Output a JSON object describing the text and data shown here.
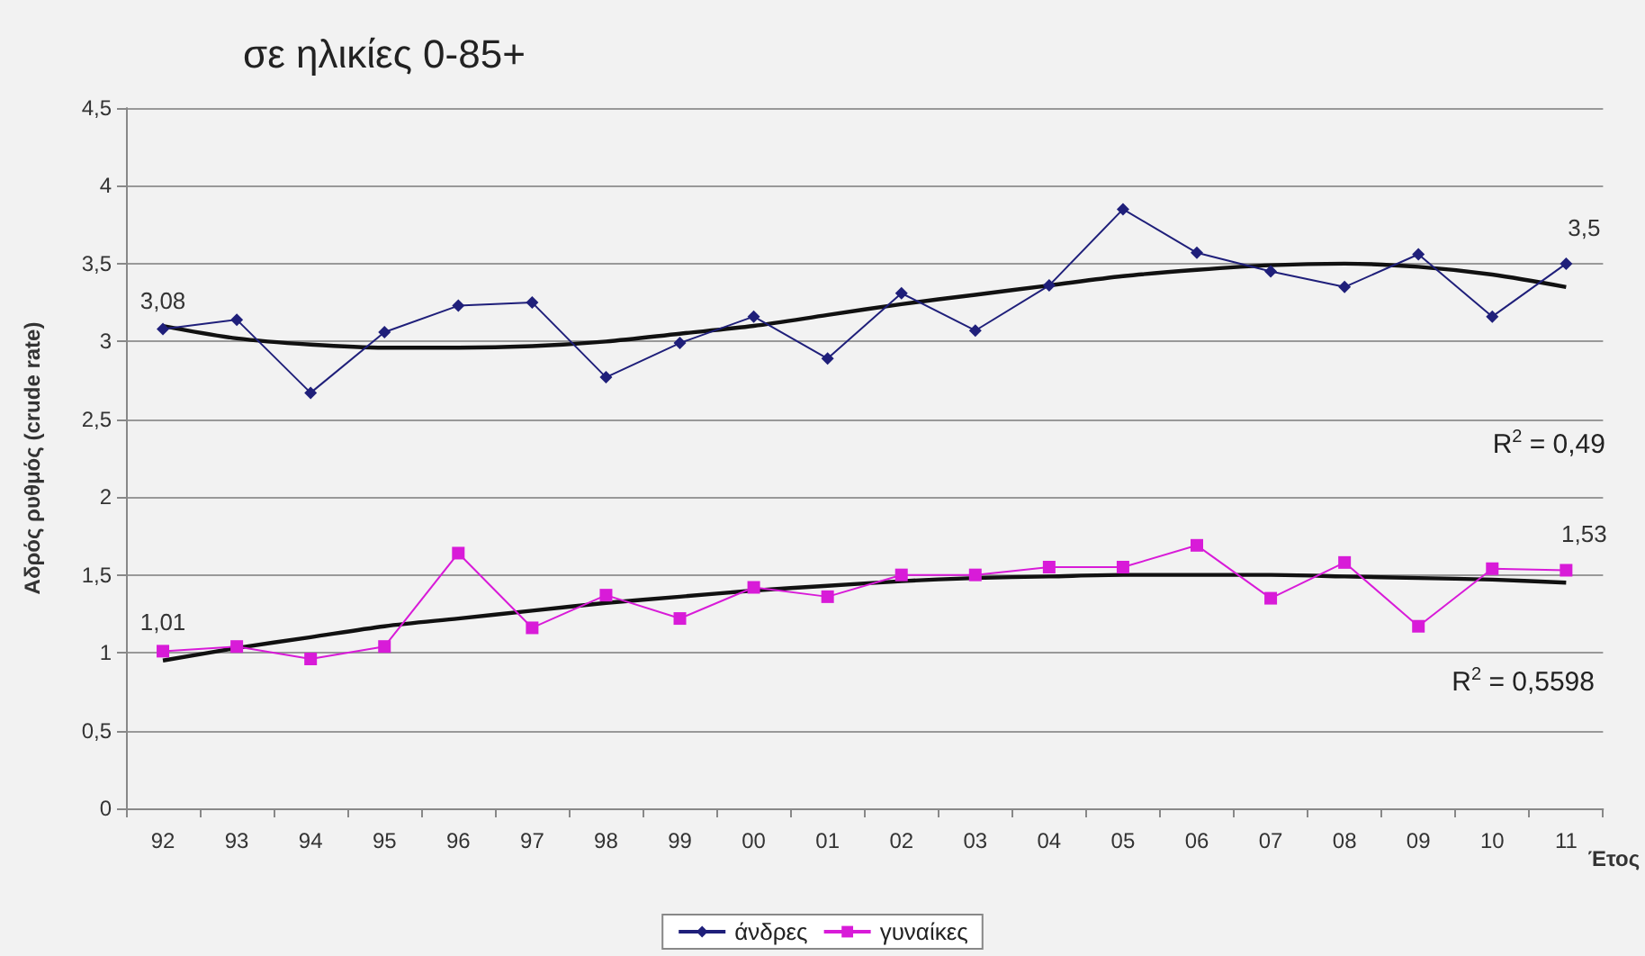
{
  "chart_data": {
    "type": "line",
    "title": "σε ηλικίες 0-85+",
    "ylabel": "Αδρός ρυθμός (crude rate)",
    "xlabel": "Έτος",
    "categories": [
      "92",
      "93",
      "94",
      "95",
      "96",
      "97",
      "98",
      "99",
      "00",
      "01",
      "02",
      "03",
      "04",
      "05",
      "06",
      "07",
      "08",
      "09",
      "10",
      "11"
    ],
    "series": [
      {
        "name": "άνδρες",
        "color": "#1f1f7a",
        "marker": "diamond",
        "values": [
          3.08,
          3.14,
          2.67,
          3.06,
          3.23,
          3.25,
          2.77,
          2.99,
          3.16,
          2.89,
          3.31,
          3.07,
          3.36,
          3.85,
          3.57,
          3.45,
          3.35,
          3.56,
          3.16,
          3.5
        ],
        "value_labels": [
          "3,08",
          null,
          null,
          null,
          null,
          null,
          null,
          null,
          null,
          null,
          null,
          null,
          null,
          null,
          null,
          null,
          null,
          null,
          null,
          "3,5"
        ]
      },
      {
        "name": "γυναίκες",
        "color": "#d81bd8",
        "marker": "square",
        "values": [
          1.01,
          1.04,
          0.96,
          1.04,
          1.64,
          1.16,
          1.37,
          1.22,
          1.42,
          1.36,
          1.5,
          1.5,
          1.55,
          1.55,
          1.69,
          1.35,
          1.58,
          1.17,
          1.54,
          1.53
        ],
        "value_labels": [
          "1,01",
          null,
          null,
          null,
          null,
          null,
          null,
          null,
          null,
          null,
          null,
          null,
          null,
          null,
          null,
          null,
          null,
          null,
          null,
          "1,53"
        ]
      },
      {
        "type": "line",
        "color": "#111111",
        "marker": "none",
        "values": [
          3.1,
          3.02,
          2.98,
          2.96,
          2.96,
          2.97,
          3.0,
          3.05,
          3.1,
          3.17,
          3.24,
          3.3,
          3.36,
          3.42,
          3.46,
          3.49,
          3.5,
          3.48,
          3.43,
          3.35
        ]
      },
      {
        "type": "line",
        "color": "#111111",
        "marker": "none",
        "values": [
          0.95,
          1.03,
          1.1,
          1.17,
          1.22,
          1.27,
          1.32,
          1.36,
          1.4,
          1.43,
          1.46,
          1.48,
          1.49,
          1.5,
          1.5,
          1.5,
          1.49,
          1.48,
          1.47,
          1.45
        ]
      }
    ],
    "ylim": [
      0,
      4.5
    ],
    "yticks": [
      0,
      {
        "value": 0.5,
        "label": "0,5"
      },
      1,
      {
        "value": 1.5,
        "label": "1,5"
      },
      2,
      {
        "value": 2.5,
        "label": "2,5"
      },
      3,
      {
        "value": 3.5,
        "label": "3,5"
      },
      4,
      {
        "value": 4.5,
        "label": "4,5"
      }
    ],
    "grid": "y",
    "legend": "bottom",
    "annotations": [
      "R$^{2}$ = 0,49",
      "R$^{2}$ = 0,5598"
    ]
  }
}
